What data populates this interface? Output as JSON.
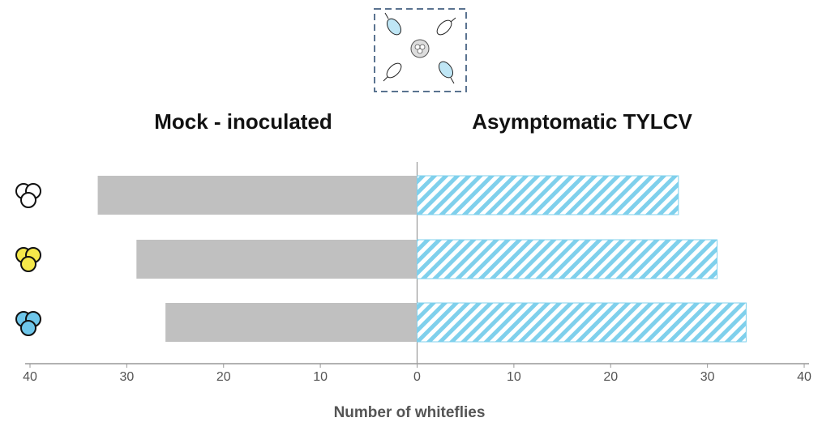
{
  "chart_data": {
    "type": "diverging_bar",
    "x_label": "Number of whiteflies",
    "categories": [
      null,
      null,
      null
    ],
    "series": [
      {
        "name": "Mock - inoculated",
        "color": "#c0c0c0",
        "values": [
          -33,
          -29,
          -26
        ]
      },
      {
        "name": "Asymptomatic TYLCV",
        "color": "#7fd0ec",
        "hatch": true,
        "values": [
          27,
          31,
          34
        ]
      }
    ],
    "xlim": [
      -40,
      40
    ],
    "xticks": [
      {
        "value": -40,
        "label": "40"
      },
      {
        "value": -30,
        "label": "30"
      },
      {
        "value": -20,
        "label": "20"
      },
      {
        "value": -10,
        "label": "10"
      },
      0,
      10,
      20,
      30,
      40
    ]
  }
}
